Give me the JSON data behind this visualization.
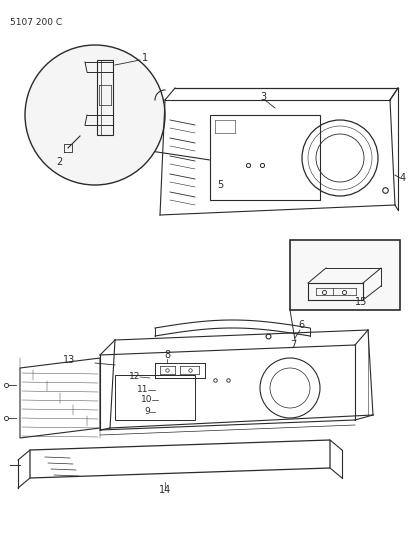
{
  "title": "5107 200 C",
  "bg_color": "#ffffff",
  "line_color": "#2a2a2a",
  "figsize": [
    4.1,
    5.33
  ],
  "dpi": 100
}
